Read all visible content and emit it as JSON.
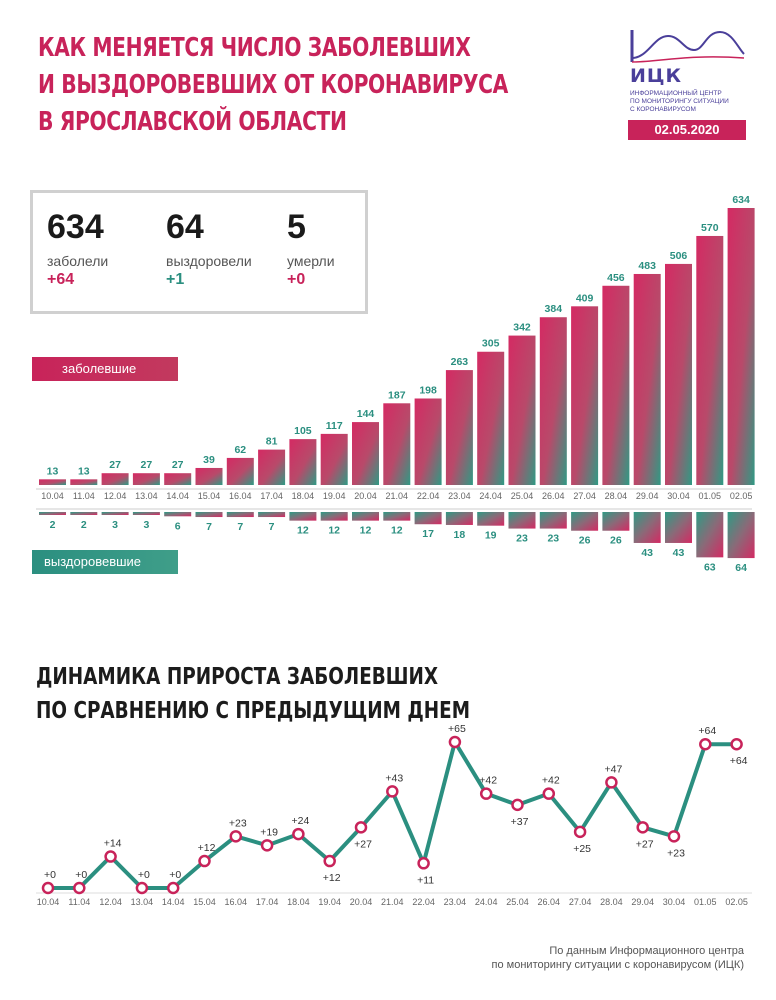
{
  "header": {
    "title_lines": [
      "КАК МЕНЯЕТСЯ ЧИСЛО ЗАБОЛЕВШИХ",
      "И ВЫЗДОРОВЕВШИХ ОТ КОРОНАВИРУСА",
      "В ЯРОСЛАВСКОЙ ОБЛАСТИ"
    ]
  },
  "logo": {
    "name": "ИЦК",
    "sub_lines": [
      "ИНФОРМАЦИОННЫЙ ЦЕНТР",
      "ПО МОНИТОРИНГУ СИТУАЦИИ",
      "С КОРОНАВИРУСОМ"
    ],
    "icon": "wave-peak-icon",
    "date": "02.05.2020"
  },
  "stats": [
    {
      "value": "634",
      "label": "заболели",
      "delta": "+64",
      "color": "#c8235a"
    },
    {
      "value": "64",
      "label": "выздоровели",
      "delta": "+1",
      "color": "#2b8f80"
    },
    {
      "value": "5",
      "label": "умерли",
      "delta": "+0",
      "color": "#c8235a"
    }
  ],
  "legend": {
    "infected": "заболевшие",
    "recovered": "выздоровевшие"
  },
  "colors": {
    "accent_red": "#c8235a",
    "accent_teal": "#2b8f80",
    "label_teal": "#2b8f80"
  },
  "subtitle_lines": [
    "ДИНАМИКА ПРИРОСТА ЗАБОЛЕВШИХ",
    "ПО СРАВНЕНИЮ С ПРЕДЫДУЩИМ ДНЕМ"
  ],
  "source_lines": [
    "По данным Информационного центра",
    "по мониторингу ситуации с коронавирусом (ИЦК)"
  ],
  "chart_data": [
    {
      "type": "bar",
      "categories": [
        "10.04",
        "11.04",
        "12.04",
        "13.04",
        "14.04",
        "15.04",
        "16.04",
        "17.04",
        "18.04",
        "19.04",
        "20.04",
        "21.04",
        "22.04",
        "23.04",
        "24.04",
        "25.04",
        "26.04",
        "27.04",
        "28.04",
        "29.04",
        "30.04",
        "01.05",
        "02.05"
      ],
      "series": [
        {
          "name": "заболевшие",
          "values": [
            13,
            13,
            27,
            27,
            27,
            39,
            62,
            81,
            105,
            117,
            144,
            187,
            198,
            263,
            305,
            342,
            384,
            409,
            456,
            483,
            506,
            570,
            634
          ]
        },
        {
          "name": "выздоровевшие",
          "values": [
            2,
            2,
            3,
            3,
            6,
            7,
            7,
            7,
            12,
            12,
            12,
            12,
            17,
            18,
            19,
            23,
            23,
            26,
            26,
            43,
            43,
            63,
            64
          ]
        }
      ],
      "ylim": [
        0,
        634
      ]
    },
    {
      "type": "line",
      "categories": [
        "10.04",
        "11.04",
        "12.04",
        "13.04",
        "14.04",
        "15.04",
        "16.04",
        "17.04",
        "18.04",
        "19.04",
        "20.04",
        "21.04",
        "22.04",
        "23.04",
        "24.04",
        "25.04",
        "26.04",
        "27.04",
        "28.04",
        "29.04",
        "30.04",
        "01.05",
        "02.05"
      ],
      "values": [
        0,
        0,
        14,
        0,
        0,
        12,
        23,
        19,
        24,
        12,
        27,
        43,
        11,
        65,
        42,
        37,
        42,
        25,
        47,
        27,
        23,
        64,
        64
      ],
      "labels": [
        "+0",
        "+0",
        "+14",
        "+0",
        "+0",
        "+12",
        "+23",
        "+19",
        "+24",
        "+12",
        "+27",
        "+43",
        "+11",
        "+65",
        "+42",
        "+37",
        "+42",
        "+25",
        "+47",
        "+27",
        "+23",
        "+64",
        "+64"
      ],
      "label_above": [
        true,
        true,
        true,
        true,
        true,
        true,
        true,
        true,
        true,
        false,
        false,
        true,
        false,
        true,
        true,
        false,
        true,
        false,
        true,
        false,
        false,
        true,
        false
      ],
      "ylim": [
        0,
        65
      ]
    }
  ]
}
